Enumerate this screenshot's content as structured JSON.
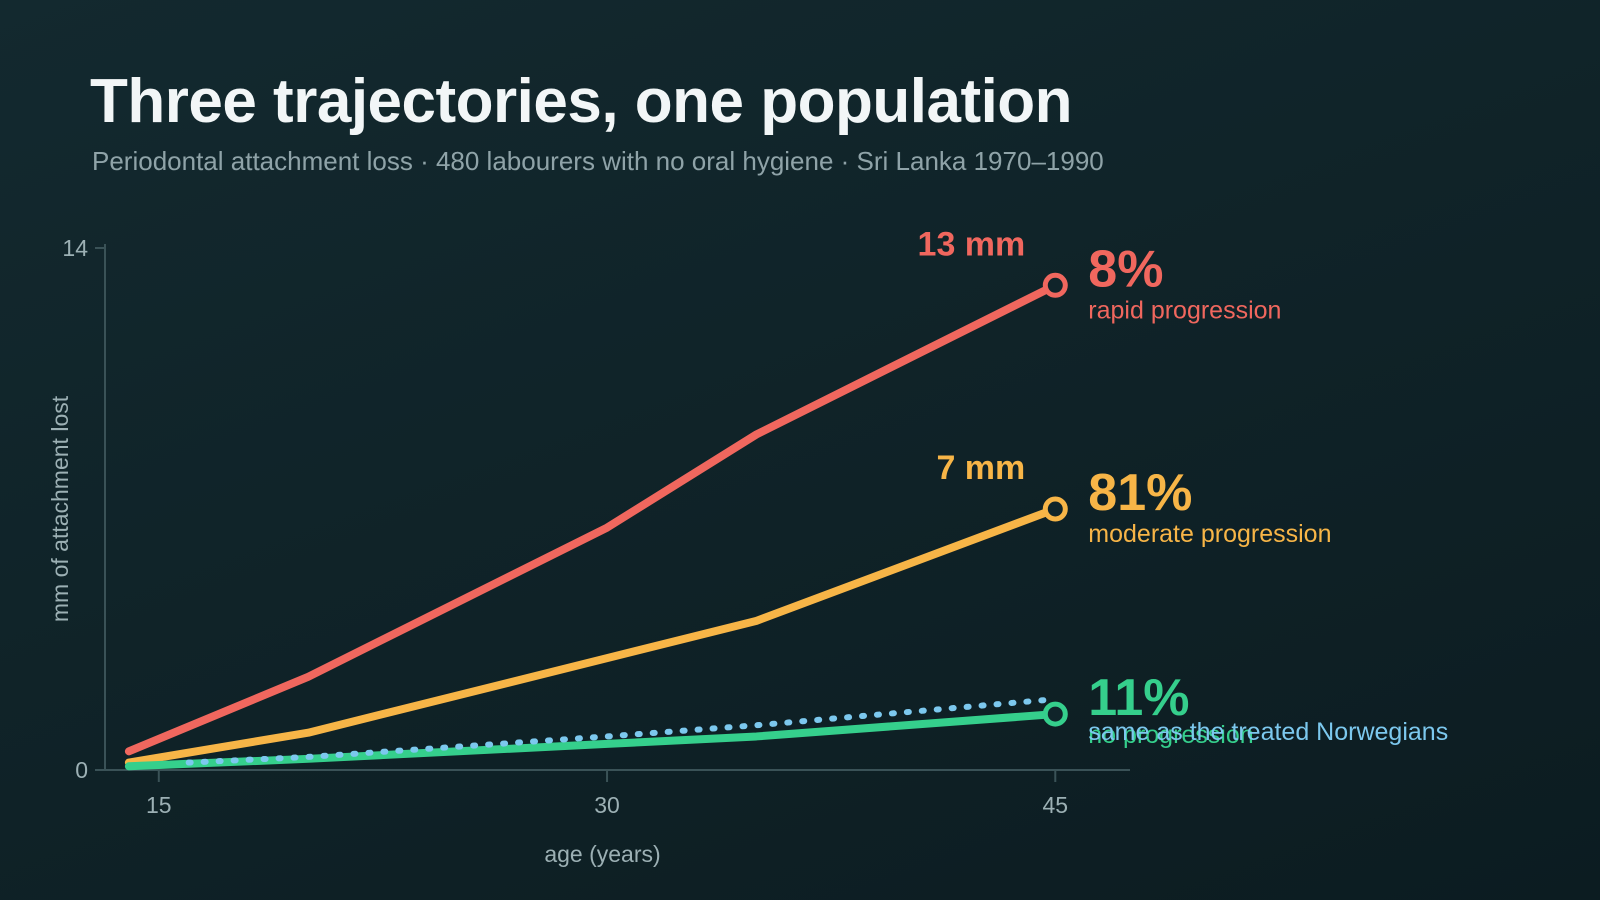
{
  "header": {
    "title": "Three trajectories, one population",
    "subtitle": "Periodontal attachment loss · 480 labourers with no oral hygiene · Sri Lanka 1970–1990"
  },
  "chart_data": {
    "type": "line",
    "xlabel": "age (years)",
    "ylabel": "mm of attachment lost",
    "xlim": [
      13.2,
      47.5
    ],
    "ylim": [
      0,
      14
    ],
    "x_ticks": [
      15,
      30,
      45
    ],
    "y_ticks": [
      0,
      14
    ],
    "grid": false,
    "series": [
      {
        "key": "rapid",
        "color": "#f0675e",
        "x": [
          14,
          20,
          30,
          35,
          45
        ],
        "values": [
          0.5,
          2.5,
          6.5,
          9.0,
          13.0
        ],
        "end_value_label": "13 mm",
        "share_label": "8%",
        "group_label": "rapid progression"
      },
      {
        "key": "moderate",
        "color": "#f7b547",
        "x": [
          14,
          20,
          30,
          35,
          45
        ],
        "values": [
          0.2,
          1.0,
          3.0,
          4.0,
          7.0
        ],
        "end_value_label": "7 mm",
        "share_label": "81%",
        "group_label": "moderate progression"
      },
      {
        "key": "none",
        "color": "#35cf8c",
        "x": [
          14,
          20,
          30,
          35,
          45
        ],
        "values": [
          0.1,
          0.3,
          0.7,
          0.9,
          1.5
        ],
        "share_label": "11%",
        "group_label": "no progression"
      },
      {
        "key": "norwegians",
        "color": "#7cc8ee",
        "dashed": true,
        "x": [
          16,
          20,
          30,
          35,
          45
        ],
        "values": [
          0.2,
          0.35,
          0.9,
          1.2,
          1.9
        ],
        "group_label": "same as the treated Norwegians"
      }
    ]
  }
}
